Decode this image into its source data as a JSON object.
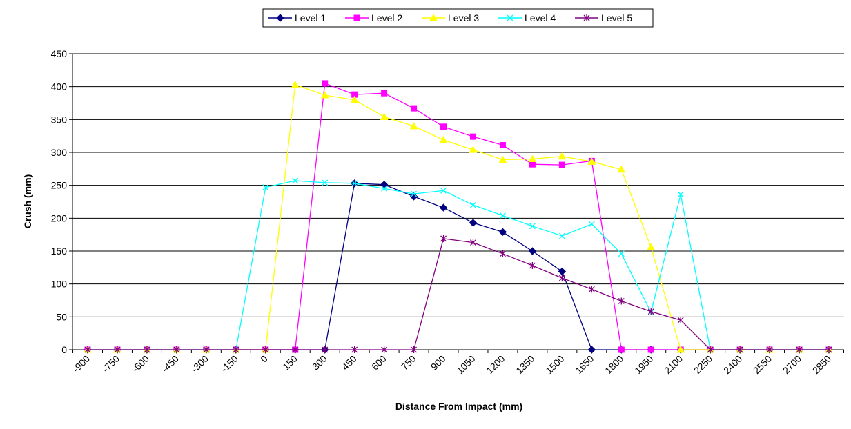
{
  "chart_data": {
    "type": "line",
    "title": "",
    "xlabel": "Distance From Impact (mm)",
    "ylabel": "Crush (mm)",
    "ylim": [
      0,
      450
    ],
    "yticks": [
      0,
      50,
      100,
      150,
      200,
      250,
      300,
      350,
      400,
      450
    ],
    "xlim": [
      -900,
      2850
    ],
    "xticks": [
      -900,
      -750,
      -600,
      -450,
      -300,
      -150,
      0,
      150,
      300,
      450,
      600,
      750,
      900,
      1050,
      1200,
      1350,
      1500,
      1650,
      1800,
      1950,
      2100,
      2250,
      2400,
      2550,
      2700,
      2850
    ],
    "x": [
      -900,
      -750,
      -600,
      -450,
      -300,
      -150,
      0,
      150,
      300,
      450,
      600,
      750,
      900,
      1050,
      1200,
      1350,
      1500,
      1650,
      1800,
      1950,
      2100,
      2250,
      2400,
      2550,
      2700,
      2850
    ],
    "grid": "horizontal",
    "legend_position": "top-center",
    "series": [
      {
        "name": "Level 1",
        "color": "#000080",
        "marker": "diamond",
        "points": [
          [
            -900,
            0
          ],
          [
            -750,
            0
          ],
          [
            -600,
            0
          ],
          [
            -450,
            0
          ],
          [
            -300,
            0
          ],
          [
            -150,
            0
          ],
          [
            0,
            0
          ],
          [
            150,
            0
          ],
          [
            300,
            0
          ],
          [
            450,
            253
          ],
          [
            600,
            251
          ],
          [
            750,
            233
          ],
          [
            900,
            216
          ],
          [
            1050,
            193
          ],
          [
            1200,
            179
          ],
          [
            1350,
            150
          ],
          [
            1500,
            119
          ],
          [
            1650,
            0
          ],
          [
            1800,
            0
          ],
          [
            1950,
            0
          ],
          [
            2100,
            0
          ],
          [
            2250,
            0
          ],
          [
            2400,
            0
          ],
          [
            2550,
            0
          ],
          [
            2700,
            0
          ],
          [
            2850,
            0
          ]
        ]
      },
      {
        "name": "Level 2",
        "color": "#ff00ff",
        "marker": "square",
        "points": [
          [
            -900,
            0
          ],
          [
            -750,
            0
          ],
          [
            -600,
            0
          ],
          [
            -450,
            0
          ],
          [
            -300,
            0
          ],
          [
            -150,
            0
          ],
          [
            0,
            0
          ],
          [
            150,
            0
          ],
          [
            300,
            405
          ],
          [
            450,
            388
          ],
          [
            600,
            390
          ],
          [
            750,
            367
          ],
          [
            900,
            339
          ],
          [
            1050,
            324
          ],
          [
            1200,
            311
          ],
          [
            1350,
            282
          ],
          [
            1500,
            281
          ],
          [
            1650,
            287
          ],
          [
            1800,
            0
          ],
          [
            1950,
            0
          ],
          [
            2100,
            0
          ],
          [
            2250,
            0
          ],
          [
            2400,
            0
          ],
          [
            2550,
            0
          ],
          [
            2700,
            0
          ],
          [
            2850,
            0
          ]
        ]
      },
      {
        "name": "Level 3",
        "color": "#ffff00",
        "marker": "triangle",
        "points": [
          [
            -900,
            0
          ],
          [
            -750,
            0
          ],
          [
            -600,
            0
          ],
          [
            -450,
            0
          ],
          [
            -300,
            0
          ],
          [
            -150,
            0
          ],
          [
            0,
            0
          ],
          [
            150,
            403
          ],
          [
            300,
            387
          ],
          [
            450,
            380
          ],
          [
            600,
            354
          ],
          [
            750,
            340
          ],
          [
            900,
            319
          ],
          [
            1050,
            304
          ],
          [
            1200,
            289
          ],
          [
            1350,
            290
          ],
          [
            1500,
            294
          ],
          [
            1650,
            286
          ],
          [
            1800,
            274
          ],
          [
            1950,
            156
          ],
          [
            2100,
            0
          ],
          [
            2250,
            0
          ],
          [
            2400,
            0
          ],
          [
            2550,
            0
          ],
          [
            2700,
            0
          ],
          [
            2850,
            0
          ]
        ]
      },
      {
        "name": "Level 4",
        "color": "#00ffff",
        "marker": "x",
        "points": [
          [
            -900,
            0
          ],
          [
            -750,
            0
          ],
          [
            -600,
            0
          ],
          [
            -450,
            0
          ],
          [
            -300,
            0
          ],
          [
            -150,
            0
          ],
          [
            0,
            247
          ],
          [
            150,
            257
          ],
          [
            300,
            254
          ],
          [
            450,
            253
          ],
          [
            600,
            245
          ],
          [
            750,
            237
          ],
          [
            900,
            242
          ],
          [
            1050,
            220
          ],
          [
            1200,
            204
          ],
          [
            1350,
            188
          ],
          [
            1500,
            173
          ],
          [
            1650,
            191
          ],
          [
            1800,
            146
          ],
          [
            1950,
            57
          ],
          [
            2100,
            236
          ],
          [
            2250,
            0
          ],
          [
            2400,
            0
          ],
          [
            2550,
            0
          ],
          [
            2700,
            0
          ],
          [
            2850,
            0
          ]
        ]
      },
      {
        "name": "Level 5",
        "color": "#800080",
        "marker": "star",
        "points": [
          [
            -900,
            0
          ],
          [
            -750,
            0
          ],
          [
            -600,
            0
          ],
          [
            -450,
            0
          ],
          [
            -300,
            0
          ],
          [
            -150,
            0
          ],
          [
            0,
            0
          ],
          [
            150,
            0
          ],
          [
            300,
            0
          ],
          [
            450,
            0
          ],
          [
            600,
            0
          ],
          [
            750,
            0
          ],
          [
            900,
            169
          ],
          [
            1050,
            163
          ],
          [
            1200,
            146
          ],
          [
            1350,
            128
          ],
          [
            1500,
            109
          ],
          [
            1650,
            92
          ],
          [
            1800,
            74
          ],
          [
            1950,
            58
          ],
          [
            2100,
            45
          ],
          [
            2250,
            0
          ],
          [
            2400,
            0
          ],
          [
            2550,
            0
          ],
          [
            2700,
            0
          ],
          [
            2850,
            0
          ]
        ]
      }
    ]
  }
}
